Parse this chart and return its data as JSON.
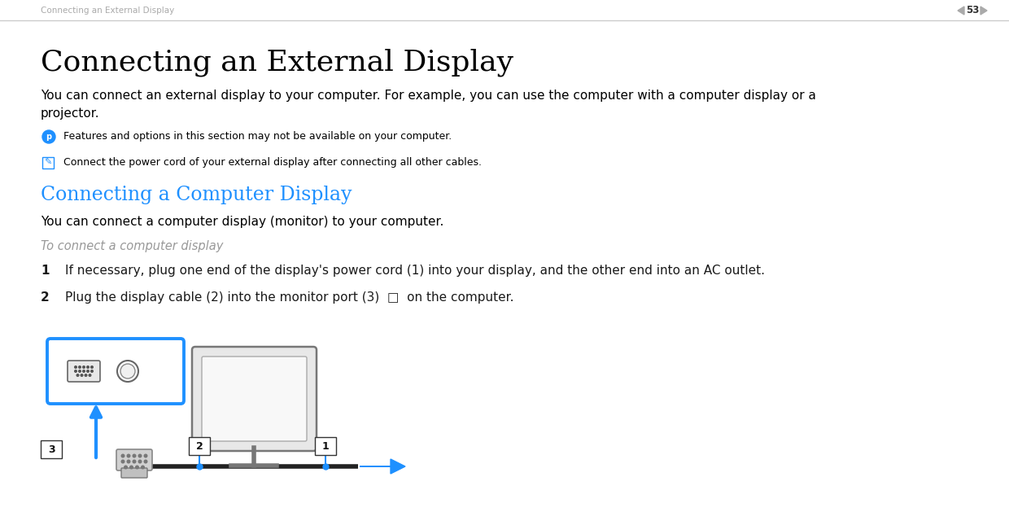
{
  "bg_color": "#ffffff",
  "header_text": "Connecting an External Display",
  "header_text_color": "#aaaaaa",
  "header_number": "53",
  "title": "Connecting an External Display",
  "title_fontsize": 26,
  "title_color": "#000000",
  "body_text1": "You can connect an external display to your computer. For example, you can use the computer with a computer display or a\nprojector.",
  "body_fontsize": 11,
  "body_color": "#000000",
  "note1_text": "Features and options in this section may not be available on your computer.",
  "note1_fontsize": 9,
  "note2_text": "Connect the power cord of your external display after connecting all other cables.",
  "note2_fontsize": 9,
  "section_title": "Connecting a Computer Display",
  "section_title_color": "#1e90ff",
  "section_title_fontsize": 17,
  "body_text2": "You can connect a computer display (monitor) to your computer.",
  "procedure_title": "To connect a computer display",
  "procedure_title_color": "#999999",
  "procedure_title_fontsize": 10.5,
  "step1": "If necessary, plug one end of the display's power cord (1) into your display, and the other end into an AC outlet.",
  "step2": "Plug the display cable (2) into the monitor port (3)  □  on the computer.",
  "step_fontsize": 11,
  "cyan_color": "#1e90ff",
  "gray_color": "#888888",
  "line_color": "#cccccc",
  "dark_gray": "#555555",
  "black": "#1a1a1a"
}
